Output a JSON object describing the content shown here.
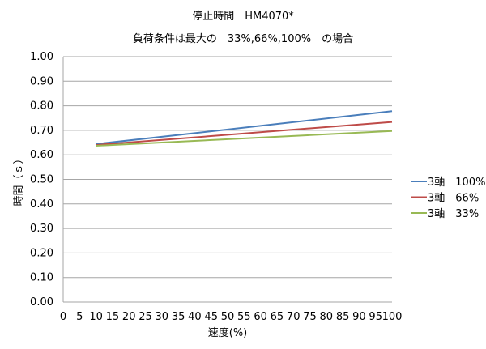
{
  "chart_data": {
    "type": "line",
    "title": "停止時間　HM4070*",
    "subtitle": "負荷条件は最大の　33%,66%,100%　の場合",
    "xlabel": "速度(%)",
    "ylabel": "時間（ｓ）",
    "xlim": [
      0,
      100
    ],
    "ylim": [
      0,
      1
    ],
    "xticks": [
      0,
      5,
      10,
      15,
      20,
      25,
      30,
      35,
      40,
      45,
      50,
      55,
      60,
      65,
      70,
      75,
      80,
      85,
      90,
      95,
      100
    ],
    "yticks": [
      "0.00",
      "0.10",
      "0.20",
      "0.30",
      "0.40",
      "0.50",
      "0.60",
      "0.70",
      "0.80",
      "0.90",
      "1.00"
    ],
    "grid": true,
    "legend_position": "right",
    "x": [
      10,
      100
    ],
    "series": [
      {
        "name": "3軸　100%",
        "color": "#4a7ebb",
        "values": [
          0.644,
          0.778
        ]
      },
      {
        "name": "3軸　66%",
        "color": "#be4b48",
        "values": [
          0.64,
          0.734
        ]
      },
      {
        "name": "3軸　33%",
        "color": "#98b954",
        "values": [
          0.637,
          0.697
        ]
      }
    ]
  }
}
